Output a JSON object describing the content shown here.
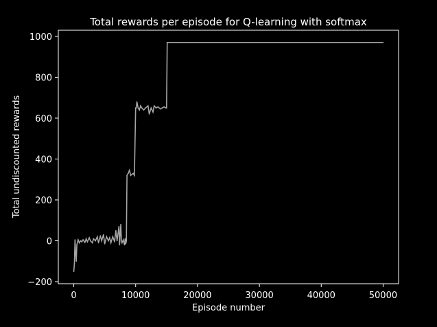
{
  "chart_data": {
    "type": "line",
    "title": "Total rewards per episode for Q-learning with softmax",
    "xlabel": "Episode number",
    "ylabel": "Total undiscounted rewards",
    "xlim": [
      -2500,
      52500
    ],
    "ylim": [
      -210,
      1030
    ],
    "xticks": [
      0,
      10000,
      20000,
      30000,
      40000,
      50000
    ],
    "yticks": [
      -200,
      0,
      200,
      400,
      600,
      800,
      1000
    ],
    "grid": false,
    "legend": "none",
    "colors": {
      "background": "#000000",
      "axes": "#ffffff",
      "text": "#ffffff",
      "line": "#a6a6a6"
    },
    "series": [
      {
        "x": [
          0,
          100,
          200,
          300,
          400,
          500,
          700,
          900,
          1100,
          1300,
          1500,
          1800,
          2000,
          2200,
          2500,
          2700,
          3000,
          3200,
          3500,
          3800,
          4000,
          4300,
          4500,
          4800,
          5000,
          5300,
          5600,
          5800,
          6000,
          6300,
          6600,
          6800,
          7000,
          7300,
          7400,
          7600,
          7700,
          7800,
          8000,
          8200,
          8300,
          8400,
          8500,
          8600,
          8800,
          9000,
          9200,
          9400,
          9600,
          9800,
          10000,
          10100,
          10200,
          10400,
          10600,
          10800,
          11000,
          11300,
          11600,
          12000,
          12200,
          12500,
          12800,
          13000,
          13300,
          13600,
          14000,
          14300,
          14600,
          14900,
          15000,
          15100,
          16000,
          20000,
          30000,
          40000,
          50000
        ],
        "y": [
          -150,
          -110,
          5,
          -60,
          -100,
          -20,
          5,
          -10,
          0,
          -5,
          5,
          -8,
          10,
          -5,
          15,
          0,
          -10,
          10,
          0,
          20,
          -10,
          25,
          0,
          30,
          -15,
          20,
          0,
          15,
          -10,
          20,
          -5,
          50,
          0,
          70,
          -20,
          80,
          0,
          -10,
          5,
          -20,
          10,
          -15,
          0,
          320,
          330,
          345,
          320,
          325,
          330,
          320,
          650,
          650,
          680,
          650,
          640,
          660,
          650,
          640,
          650,
          660,
          620,
          650,
          630,
          660,
          650,
          655,
          645,
          650,
          655,
          650,
          650,
          970,
          970,
          970,
          970,
          970,
          970
        ]
      }
    ]
  }
}
